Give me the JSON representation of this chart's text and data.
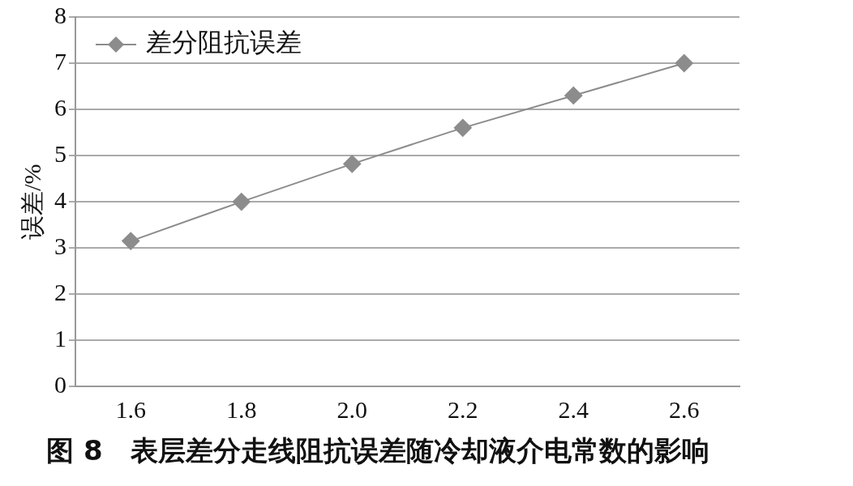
{
  "chart_data": {
    "type": "line",
    "title": "图 8　表层差分走线阻抗误差随冷却液介电常数的影响",
    "ylabel": "误差/%",
    "categories": [
      "1.6",
      "1.8",
      "2.0",
      "2.2",
      "2.4",
      "2.6"
    ],
    "series": [
      {
        "name": "差分阻抗误差",
        "color": "#8c8c8c",
        "values": [
          3.15,
          4.0,
          4.82,
          5.6,
          6.3,
          7.0
        ]
      }
    ],
    "ylim": [
      0,
      8
    ],
    "yticks": [
      0,
      1,
      2,
      3,
      4,
      5,
      6,
      7,
      8
    ],
    "grid": "y",
    "legend": "top left",
    "marker": "diamond",
    "line_style": "solid"
  }
}
